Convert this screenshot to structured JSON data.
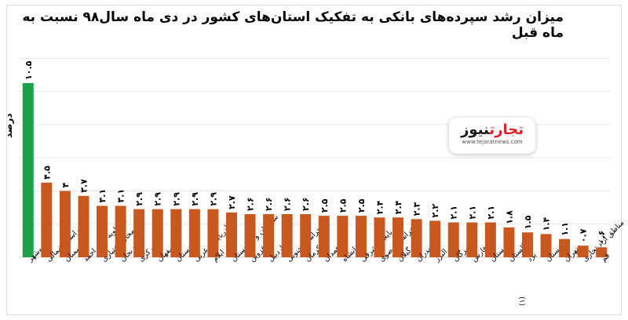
{
  "chart_data": {
    "type": "bar",
    "title": "میزان رشد سپرده‌های بانکی به تفکیک استان‌های کشور در دی ماه سال۹۸ نسبت به ماه قبل",
    "ylabel": "درصد",
    "xlabel": "",
    "ylim": [
      0,
      12.2
    ],
    "grid": true,
    "categories": [
      "بوشهر",
      "خراسان شمالی",
      "سمنان",
      "کهگیلویه وبویراحمد",
      "چهارمحال‌وبختیاری",
      "زنجان",
      "مرکزی",
      "اصفهان",
      "کردستان",
      "آذربایجان غربی",
      "ایلام",
      "سیستان و بلوچستان",
      "قزوین",
      "اردبیل",
      "خراسان جنوبی",
      "کرمان",
      "همدان",
      "کرمانشاه",
      "آذربایجان شرقی",
      "خراسان رضوی",
      "گیلان",
      "مازندران",
      "البرز",
      "هرمزگان",
      "فارس",
      "لرستان",
      "گلستان",
      "یزد",
      "خوزستان",
      "تهران",
      "مناطق آزاد تجاری",
      "قم"
    ],
    "values": [
      10.5,
      4.5,
      4,
      3.7,
      3.1,
      3.1,
      2.9,
      2.9,
      2.9,
      2.9,
      2.9,
      2.7,
      2.6,
      2.6,
      2.6,
      2.6,
      2.5,
      2.5,
      2.5,
      2.4,
      2.4,
      2.3,
      2.2,
      2.1,
      2.1,
      2.1,
      1.8,
      1.5,
      1.4,
      1.1,
      0.7,
      0.6
    ],
    "value_labels": [
      "۱۰.۵",
      "۴.۵",
      "۴",
      "۳.۷",
      "۳.۱",
      "۳.۱",
      "۲.۹",
      "۲.۹",
      "۲.۹",
      "۲.۹",
      "۲.۹",
      "۲.۷",
      "۲.۶",
      "۲.۶",
      "۲.۶",
      "۲.۶",
      "۲.۵",
      "۲.۵",
      "۲.۵",
      "۲.۴",
      "۲.۴",
      "۲.۳",
      "۲.۲",
      "۲.۱",
      "۲.۱",
      "۲.۱",
      "۱.۸",
      "۱.۵",
      "۱.۴",
      "۱.۱",
      "۰.۷",
      "۰.۶"
    ],
    "highlight_color": "#1aa24a",
    "bar_color": "#c8581e",
    "footnote": "(۱)"
  },
  "logo": {
    "part_red": "تجارت",
    "part_dark": "نیوز",
    "url": "www.tejaratnews.com"
  }
}
